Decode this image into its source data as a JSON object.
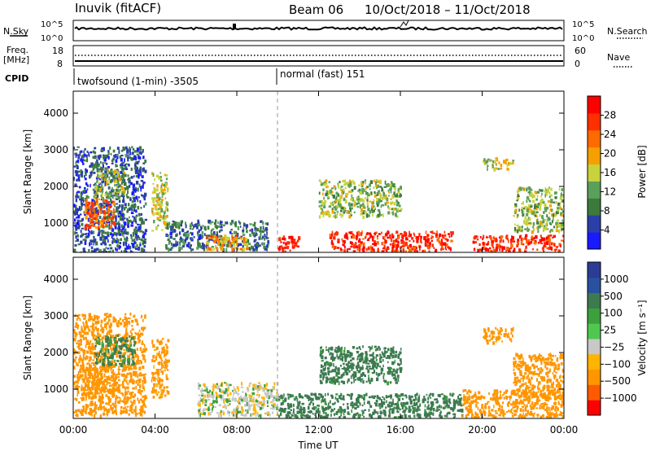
{
  "header": {
    "station": "Inuvik  (fitACF)",
    "beam": "Beam 06",
    "dates": "10/Oct/2018 – 11/Oct/2018"
  },
  "panels": {
    "nsky": {
      "left_label": "N.Sky",
      "right_label": "N.Search",
      "left_ticks": [
        "10^5",
        "10^0"
      ],
      "right_ticks": [
        "10^5",
        "10^0"
      ]
    },
    "freq": {
      "left_label_1": "Freq.",
      "left_label_2": "[MHz]",
      "right_label": "Nave",
      "left_ticks": [
        "18",
        "8"
      ],
      "right_ticks": [
        "60",
        "0"
      ]
    },
    "cpid": {
      "label": "CPID",
      "modes": [
        "twofsound (1-min)  -3505",
        "normal (fast)  151"
      ],
      "mode_start_hours": [
        0,
        10
      ]
    }
  },
  "colors": {
    "power_scale": [
      "#1a1aff",
      "#2a3fa8",
      "#3c7a3c",
      "#5aa05a",
      "#c8d23c",
      "#f5a000",
      "#ff6a00",
      "#ff3000",
      "#ff0000"
    ],
    "velocity_scale": [
      "#ff0000",
      "#ff5a00",
      "#ff9600",
      "#ffb400",
      "#c8c8c8",
      "#50c850",
      "#3ca03c",
      "#3c7a50",
      "#2a50a0",
      "#2a3c96"
    ]
  },
  "chart_data": [
    {
      "type": "heatmap",
      "name": "power",
      "xlabel": "",
      "ylabel": "Slant Range [km]",
      "xlim": [
        0,
        24
      ],
      "ylim": [
        200,
        4600
      ],
      "y_ticks": [
        "1000",
        "2000",
        "3000",
        "4000"
      ],
      "colorbar_label": "Power [dB]",
      "colorbar_ticks": [
        "4",
        "8",
        "12",
        "16",
        "20",
        "24",
        "28"
      ],
      "colorbar_range": [
        0,
        32
      ],
      "regions": [
        {
          "x": [
            0,
            3.5
          ],
          "y": [
            200,
            3100
          ],
          "value": 6
        },
        {
          "x": [
            0.5,
            2.0
          ],
          "y": [
            900,
            1700
          ],
          "value": 24
        },
        {
          "x": [
            1.0,
            2.5
          ],
          "y": [
            1700,
            2500
          ],
          "value": 14
        },
        {
          "x": [
            3.8,
            4.6
          ],
          "y": [
            800,
            2400
          ],
          "value": 16
        },
        {
          "x": [
            4.5,
            9.5
          ],
          "y": [
            300,
            1100
          ],
          "value": 8
        },
        {
          "x": [
            6.5,
            8.5
          ],
          "y": [
            300,
            700
          ],
          "value": 20
        },
        {
          "x": [
            10.0,
            11.0
          ],
          "y": [
            250,
            700
          ],
          "value": 30
        },
        {
          "x": [
            12.5,
            18.5
          ],
          "y": [
            250,
            800
          ],
          "value": 28
        },
        {
          "x": [
            19.5,
            24.0
          ],
          "y": [
            250,
            700
          ],
          "value": 28
        },
        {
          "x": [
            12.0,
            16.0
          ],
          "y": [
            1200,
            2200
          ],
          "value": 14
        },
        {
          "x": [
            20.0,
            21.5
          ],
          "y": [
            2500,
            2800
          ],
          "value": 16
        },
        {
          "x": [
            21.5,
            24.0
          ],
          "y": [
            800,
            2000
          ],
          "value": 14
        }
      ]
    },
    {
      "type": "heatmap",
      "name": "velocity",
      "xlabel": "Time UT",
      "ylabel": "Slant Range [km]",
      "xlim": [
        0,
        24
      ],
      "ylim": [
        200,
        4600
      ],
      "x_ticks": [
        "00:00",
        "04:00",
        "08:00",
        "12:00",
        "16:00",
        "20:00",
        "00:00"
      ],
      "y_ticks": [
        "1000",
        "2000",
        "3000",
        "4000"
      ],
      "colorbar_label": "Velocity [m s⁻¹]",
      "colorbar_ticks": [
        "1000",
        "500",
        "100",
        "25",
        "−25",
        "−100",
        "−500",
        "−1000"
      ],
      "regions": [
        {
          "x": [
            0,
            3.5
          ],
          "y": [
            300,
            3100
          ],
          "value": -200
        },
        {
          "x": [
            0.5,
            2.0
          ],
          "y": [
            900,
            1700
          ],
          "value": -300
        },
        {
          "x": [
            1.0,
            3.0
          ],
          "y": [
            1700,
            2500
          ],
          "value": 120
        },
        {
          "x": [
            3.8,
            4.6
          ],
          "y": [
            800,
            2400
          ],
          "value": -150
        },
        {
          "x": [
            6.0,
            10.0
          ],
          "y": [
            300,
            1200
          ],
          "value": 0
        },
        {
          "x": [
            10.0,
            19.0
          ],
          "y": [
            250,
            900
          ],
          "value": 150
        },
        {
          "x": [
            12.0,
            16.0
          ],
          "y": [
            1200,
            2200
          ],
          "value": 150
        },
        {
          "x": [
            20.0,
            21.5
          ],
          "y": [
            2300,
            2700
          ],
          "value": -400
        },
        {
          "x": [
            19.0,
            24.0
          ],
          "y": [
            250,
            1000
          ],
          "value": -200
        },
        {
          "x": [
            21.5,
            24.0
          ],
          "y": [
            800,
            2000
          ],
          "value": -300
        }
      ]
    }
  ]
}
